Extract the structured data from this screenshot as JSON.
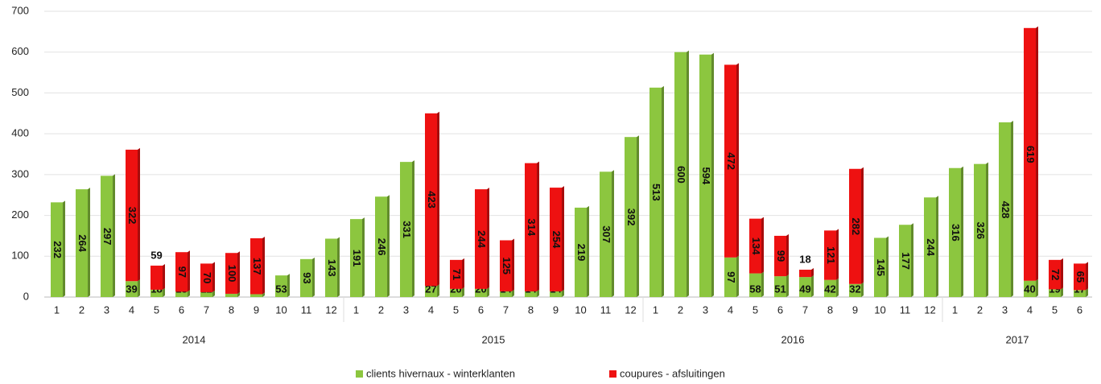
{
  "chart_data": {
    "type": "stacked_bar",
    "categories": [
      "1",
      "2",
      "3",
      "4",
      "5",
      "6",
      "7",
      "8",
      "9",
      "10",
      "11",
      "12",
      "1",
      "2",
      "3",
      "4",
      "5",
      "6",
      "7",
      "8",
      "9",
      "10",
      "11",
      "12",
      "1",
      "2",
      "3",
      "4",
      "5",
      "6",
      "7",
      "8",
      "9",
      "10",
      "11",
      "12",
      "1",
      "2",
      "3",
      "4",
      "5",
      "6"
    ],
    "groups": [
      "2014",
      "2015",
      "2016",
      "2017"
    ],
    "series": [
      {
        "name": "clients hivernaux - winterklanten",
        "color": "#8cc63f",
        "values": [
          232,
          264,
          297,
          39,
          18,
          13,
          12,
          8,
          7,
          53,
          93,
          143,
          191,
          246,
          331,
          27,
          20,
          20,
          14,
          14,
          14,
          219,
          307,
          392,
          513,
          600,
          594,
          97,
          58,
          51,
          49,
          42,
          32,
          145,
          177,
          244,
          316,
          326,
          428,
          40,
          19,
          17
        ]
      },
      {
        "name": "coupures - afsluitingen",
        "color": "#ee1111",
        "values": [
          null,
          null,
          null,
          322,
          59,
          97,
          70,
          100,
          137,
          null,
          null,
          null,
          null,
          null,
          null,
          423,
          71,
          244,
          125,
          314,
          254,
          null,
          null,
          null,
          null,
          null,
          null,
          472,
          134,
          99,
          18,
          121,
          282,
          null,
          null,
          null,
          null,
          null,
          null,
          619,
          72,
          65
        ]
      }
    ],
    "ylim": [
      0,
      700
    ],
    "yticks": [
      0,
      100,
      200,
      300,
      400,
      500,
      600,
      700
    ],
    "grid": true,
    "legend": "bottom"
  }
}
